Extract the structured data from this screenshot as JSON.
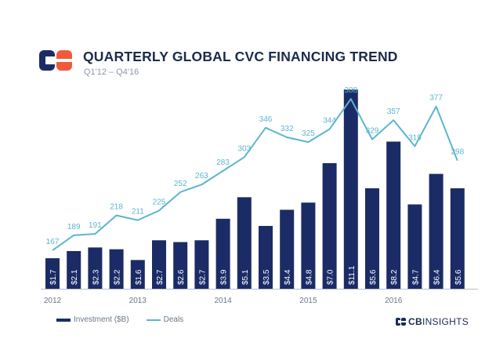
{
  "header": {
    "logo": "cb-insights-logo-icon",
    "title": "QUARTERLY GLOBAL CVC FINANCING TREND",
    "subtitle": "Q1'12 – Q4'16"
  },
  "legend": {
    "investment_label": "Investment ($B)",
    "deals_label": "Deals"
  },
  "brand": {
    "icon": "cb-insights-logo-icon",
    "prefix": "CB",
    "suffix": "INSIGHTS"
  },
  "colors": {
    "bars": "#1b2b66",
    "line": "#5bb6cf",
    "title": "#1b2b4c"
  },
  "chart_data": {
    "type": "bar",
    "title": "QUARTERLY GLOBAL CVC FINANCING TREND",
    "subtitle": "Q1'12 – Q4'16",
    "x_labels": [
      "2012",
      "2013",
      "2014",
      "2015",
      "2016"
    ],
    "categories": [
      "Q1'12",
      "Q2'12",
      "Q3'12",
      "Q4'12",
      "Q1'13",
      "Q2'13",
      "Q3'13",
      "Q4'13",
      "Q1'14",
      "Q2'14",
      "Q3'14",
      "Q4'14",
      "Q1'15",
      "Q2'15",
      "Q3'15",
      "Q4'15",
      "Q1'16",
      "Q2'16",
      "Q3'16",
      "Q4'16"
    ],
    "series": [
      {
        "name": "Investment ($B)",
        "type": "bar",
        "values": [
          1.7,
          2.1,
          2.3,
          2.2,
          1.6,
          2.7,
          2.6,
          2.7,
          3.9,
          5.1,
          3.5,
          4.4,
          4.8,
          7.0,
          11.1,
          5.6,
          8.2,
          4.7,
          6.4,
          5.6
        ],
        "labels": [
          "$1.7",
          "$2.1",
          "$2.3",
          "$2.2",
          "$1.6",
          "$2.7",
          "$2.6",
          "$2.7",
          "$3.9",
          "$5.1",
          "$3.5",
          "$4.4",
          "$4.8",
          "$7.0",
          "$11.1",
          "$5.6",
          "$8.2",
          "$4.7",
          "$6.4",
          "$5.6"
        ]
      },
      {
        "name": "Deals",
        "type": "line",
        "values": [
          167,
          189,
          191,
          218,
          211,
          225,
          252,
          263,
          283,
          303,
          346,
          332,
          325,
          344,
          388,
          329,
          357,
          319,
          377,
          298
        ]
      }
    ],
    "bar_ylim": [
      0,
      11.5
    ],
    "line_ylim": [
      80,
      395
    ],
    "grid": false,
    "legend_position": "bottom-left"
  }
}
